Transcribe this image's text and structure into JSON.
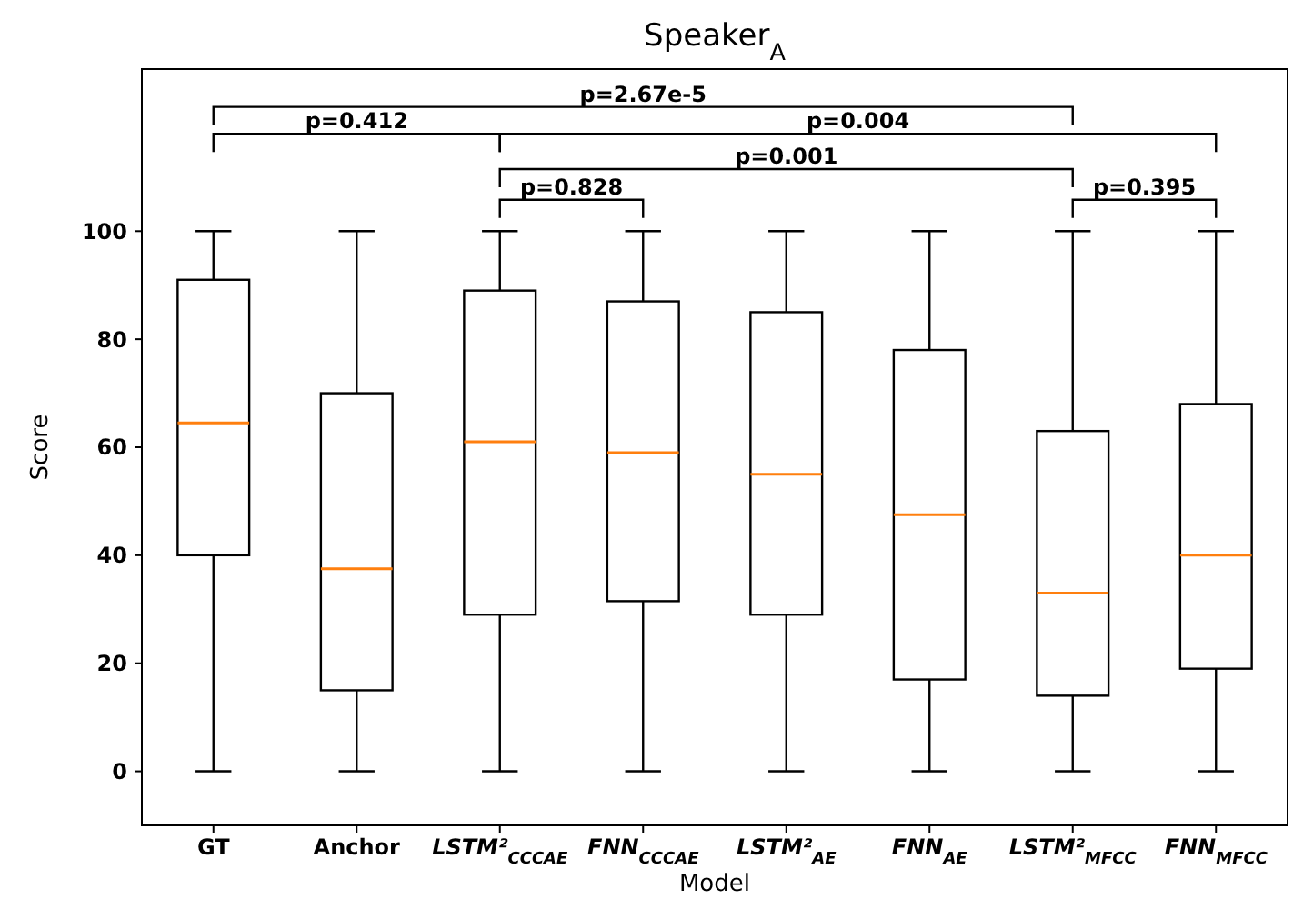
{
  "chart_data": {
    "type": "box",
    "title": "Speaker$_{A}$",
    "xlabel": "Model",
    "ylabel": "Score",
    "categories": [
      "GT",
      "Anchor",
      "LSTM²$_{CCCAE}$",
      "FNN$_{CCCAE}$",
      "LSTM²$_{AE}$",
      "FNN$_{AE}$",
      "LSTM²$_{MFCC}$",
      "FNN$_{MFCC}$"
    ],
    "boxes": [
      {
        "low": 0,
        "q1": 40,
        "median": 64.5,
        "q3": 91,
        "high": 100
      },
      {
        "low": 0,
        "q1": 15,
        "median": 37.5,
        "q3": 70,
        "high": 100
      },
      {
        "low": 0,
        "q1": 29,
        "median": 61,
        "q3": 89,
        "high": 100
      },
      {
        "low": 0,
        "q1": 31.5,
        "median": 59,
        "q3": 87,
        "high": 100
      },
      {
        "low": 0,
        "q1": 29,
        "median": 55,
        "q3": 85,
        "high": 100
      },
      {
        "low": 0,
        "q1": 17,
        "median": 47.5,
        "q3": 78,
        "high": 100
      },
      {
        "low": 0,
        "q1": 14,
        "median": 33,
        "q3": 63,
        "high": 100
      },
      {
        "low": 0,
        "q1": 19,
        "median": 40,
        "q3": 68,
        "high": 100
      }
    ],
    "color": "#000000",
    "ylim": [
      -10,
      130
    ],
    "yticks": [
      0,
      20,
      40,
      60,
      80,
      100
    ],
    "grid": false,
    "annotations": [
      "p=2.67e-5",
      "p=0.412",
      "p=0.004",
      "p=0.001",
      "p=0.828",
      "p=0.395"
    ]
  }
}
